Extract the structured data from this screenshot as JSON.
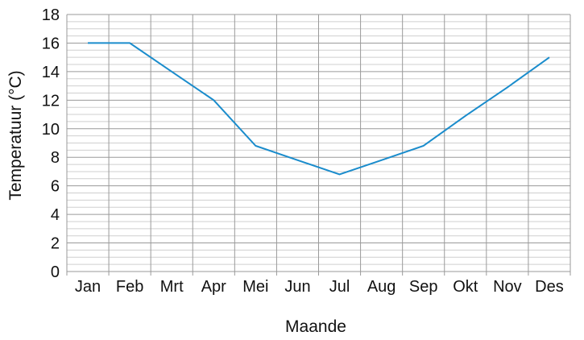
{
  "chart_data": {
    "type": "line",
    "title": "",
    "xlabel": "Maande",
    "ylabel": "Temperatuur (°C)",
    "categories": [
      "Jan",
      "Feb",
      "Mrt",
      "Apr",
      "Mei",
      "Jun",
      "Jul",
      "Aug",
      "Sep",
      "Okt",
      "Nov",
      "Des"
    ],
    "series": [
      {
        "values": [
          16,
          16,
          14,
          12,
          8.8,
          7.8,
          6.8,
          7.8,
          8.8,
          10.9,
          12.9,
          15
        ]
      }
    ],
    "ylim": [
      0,
      18
    ],
    "yticks": [
      "0",
      "2",
      "4",
      "6",
      "8",
      "10",
      "12",
      "14",
      "16",
      "18"
    ],
    "grid": true,
    "legend": "none",
    "colors": {
      "line": "#1a8ccc",
      "grid_major": "#9a9a9a",
      "grid_minor": "#cfcfcf"
    }
  }
}
